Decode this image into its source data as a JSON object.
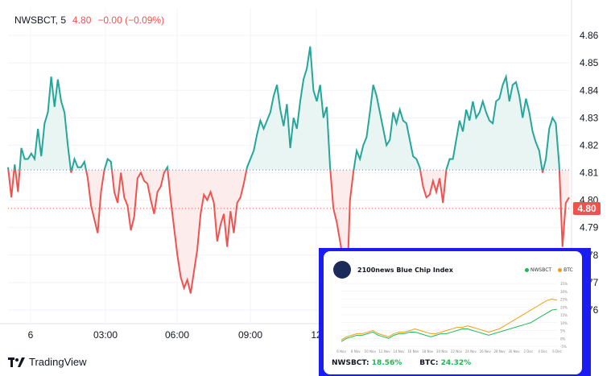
{
  "legend": {
    "symbol": "NWSBCT, 5",
    "price": "4.80",
    "change": "−0.00 (−0.09%)"
  },
  "price_tag": "4.80",
  "brand": "TradingView",
  "colors": {
    "up": "#26a69a",
    "down": "#ef5350",
    "up_fill": "#e8f5f2",
    "down_fill": "#fdecec"
  },
  "chart_data": {
    "type": "line",
    "baseline_chart": true,
    "baseline_value": 4.811,
    "last_price": 4.797,
    "ylim": [
      4.755,
      4.87
    ],
    "yticks": [
      "4.86",
      "4.85",
      "4.84",
      "4.83",
      "4.82",
      "4.81",
      "4.80",
      "4.79",
      "4.78",
      "4.77",
      "4.76"
    ],
    "xticks": [
      "6",
      "03:00",
      "06:00",
      "09:00",
      "12"
    ],
    "y": [
      4.812,
      4.801,
      4.813,
      4.803,
      4.819,
      4.815,
      4.815,
      4.817,
      4.815,
      4.826,
      4.816,
      4.828,
      4.832,
      4.845,
      4.834,
      4.844,
      4.836,
      4.832,
      4.82,
      4.81,
      4.815,
      4.812,
      4.812,
      4.814,
      4.808,
      4.798,
      4.793,
      4.788,
      4.803,
      4.811,
      4.815,
      4.814,
      4.803,
      4.799,
      4.81,
      4.801,
      4.798,
      4.789,
      4.794,
      4.808,
      4.81,
      4.807,
      4.806,
      4.8,
      4.795,
      4.803,
      4.805,
      4.81,
      4.812,
      4.8,
      4.79,
      4.78,
      4.772,
      4.768,
      4.771,
      4.766,
      4.774,
      4.782,
      4.795,
      4.802,
      4.8,
      4.803,
      4.799,
      4.785,
      4.791,
      4.795,
      4.783,
      4.796,
      4.788,
      4.799,
      4.801,
      4.806,
      4.812,
      4.815,
      4.818,
      4.824,
      4.829,
      4.826,
      4.829,
      4.832,
      4.838,
      4.842,
      4.833,
      4.827,
      4.835,
      4.819,
      4.83,
      4.826,
      4.836,
      4.844,
      4.848,
      4.856,
      4.84,
      4.836,
      4.842,
      4.83,
      4.834,
      4.812,
      4.797,
      4.792,
      4.785,
      4.778,
      4.765,
      4.8,
      4.81,
      4.818,
      4.815,
      4.82,
      4.823,
      4.832,
      4.842,
      4.838,
      4.832,
      4.826,
      4.82,
      4.822,
      4.832,
      4.828,
      4.833,
      4.829,
      4.828,
      4.822,
      4.816,
      4.815,
      4.812,
      4.805,
      4.801,
      4.802,
      4.807,
      4.803,
      4.808,
      4.799,
      4.811,
      4.815,
      4.815,
      4.822,
      4.829,
      4.825,
      4.833,
      4.829,
      4.836,
      4.83,
      4.832,
      4.836,
      4.832,
      4.829,
      4.828,
      4.836,
      4.837,
      4.842,
      4.845,
      4.836,
      4.842,
      4.843,
      4.838,
      4.83,
      4.837,
      4.832,
      4.825,
      4.821,
      4.818,
      4.81,
      4.815,
      4.826,
      4.83,
      4.828,
      4.813,
      4.783,
      4.799,
      4.801
    ]
  },
  "inset": {
    "title": "2100news Blue Chip Index",
    "legend": [
      {
        "label": "NWSBCT",
        "color": "#1db954"
      },
      {
        "label": "BTC",
        "color": "#f39c12"
      }
    ],
    "xticks": [
      "6 Nov",
      "8 Nov",
      "10 Nov",
      "12 Nov",
      "14 Nov",
      "16 Nov",
      "18 Nov",
      "20 Nov",
      "22 Nov",
      "24 Nov",
      "26 Nov",
      "28 Nov",
      "30 Nov",
      "2 Dec",
      "4 Dec",
      "6 Dec"
    ],
    "yticks": [
      "35%",
      "30%",
      "25%",
      "20%",
      "15%",
      "10%",
      "5%",
      "0%",
      "-5%"
    ],
    "series": [
      {
        "name": "NWSBCT",
        "values": [
          -2,
          0,
          1,
          2,
          2,
          3,
          4,
          2,
          1,
          0,
          2,
          3,
          3,
          4,
          4,
          3,
          2,
          1,
          2,
          3,
          3,
          4,
          5,
          6,
          6,
          5,
          4,
          3,
          2,
          3,
          4,
          5,
          6,
          7,
          8,
          9,
          10,
          12,
          14,
          16,
          18,
          18.56
        ]
      },
      {
        "name": "BTC",
        "values": [
          -1,
          1,
          2,
          3,
          3,
          4,
          5,
          3,
          2,
          1,
          3,
          4,
          4,
          5,
          6,
          5,
          4,
          3,
          3,
          4,
          5,
          6,
          7,
          7,
          8,
          7,
          6,
          5,
          4,
          5,
          6,
          8,
          10,
          12,
          14,
          16,
          18,
          20,
          22,
          24,
          25,
          24.32
        ]
      }
    ],
    "footer": [
      {
        "label": "NWSBCT:",
        "value": "18.56%"
      },
      {
        "label": "BTC:",
        "value": "24.32%"
      }
    ]
  }
}
